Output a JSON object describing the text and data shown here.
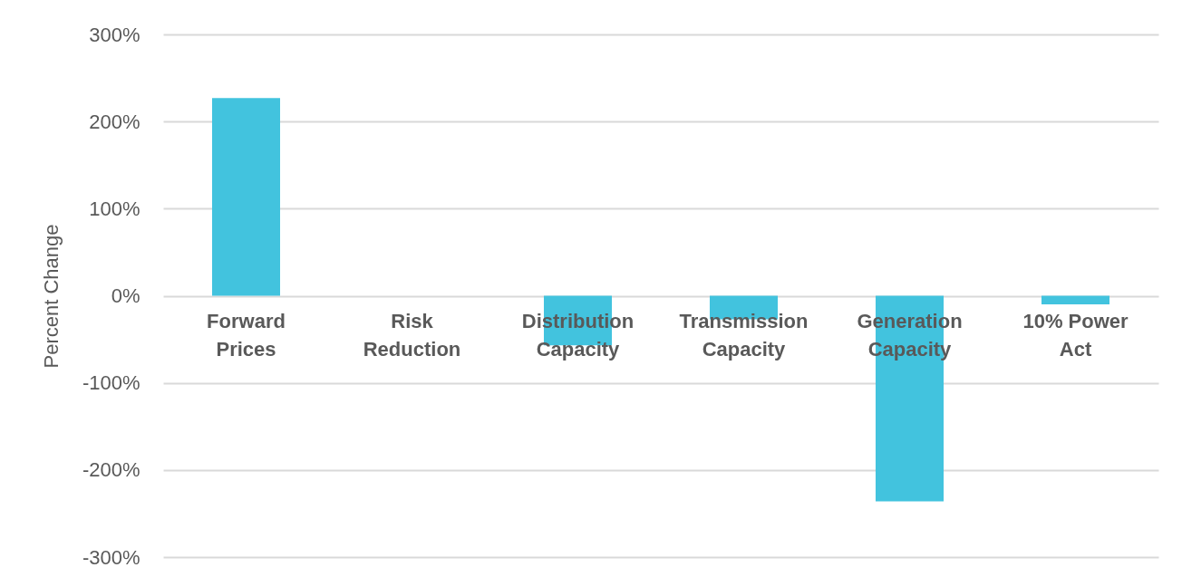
{
  "chart_data": {
    "type": "bar",
    "ylabel": "Percent Change",
    "categories": [
      "Forward Prices",
      "Risk Reduction",
      "Distribution Capacity",
      "Transmission Capacity",
      "Generation Capacity",
      "10% Power Act"
    ],
    "series": [
      {
        "color": "#42c3de",
        "values": [
          227,
          0,
          -57,
          -27,
          -236,
          -10
        ]
      }
    ],
    "ylim": [
      -300,
      300
    ],
    "yticks": [
      {
        "value": -300,
        "label": "-300%"
      },
      {
        "value": -200,
        "label": "-200%"
      },
      {
        "value": -100,
        "label": "-100%"
      },
      {
        "value": 0,
        "label": "0%"
      },
      {
        "value": 100,
        "label": "100%"
      },
      {
        "value": 200,
        "label": "200%"
      },
      {
        "value": 300,
        "label": "300%"
      }
    ],
    "grid": "y"
  }
}
